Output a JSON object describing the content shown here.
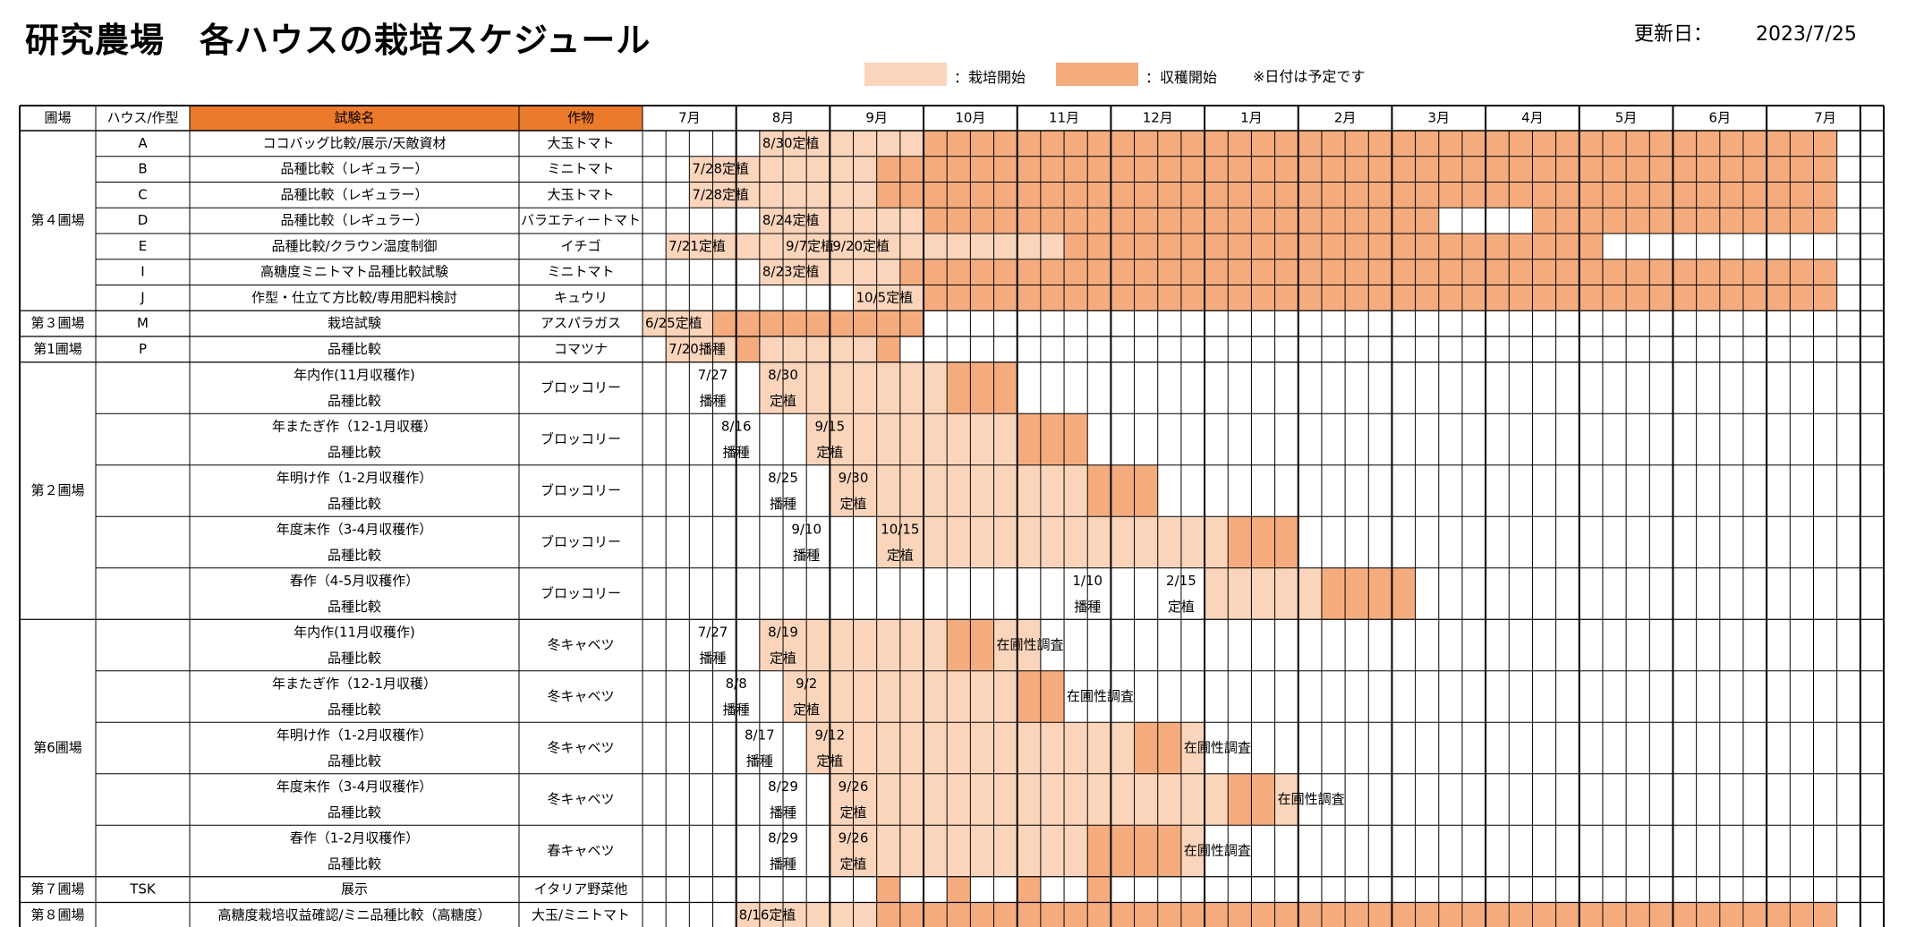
{
  "title": "研究農場　各ハウスの栽培スケジュール",
  "updated": {
    "label": "更新日：",
    "date": "2023/7/25"
  },
  "legend": [
    {
      "text": "：栽培開始",
      "color": "#fbd5bb"
    },
    {
      "text": "：収穫開始",
      "color": "#f4ac7f"
    }
  ],
  "note": "※日付は予定です",
  "colors": {
    "cultivation": "#fbd5bb",
    "harvest": "#f4ac7f",
    "header_accent": "#ec7a2b",
    "border": "#000000"
  },
  "headers": {
    "farm": "圃場",
    "house": "ハウス/作型",
    "trial": "試験名",
    "crop": "作物"
  },
  "months": [
    "7月",
    "8月",
    "9月",
    "10月",
    "11月",
    "12月",
    "1月",
    "2月",
    "3月",
    "4月",
    "5月",
    "6月",
    "7月"
  ],
  "groups": [
    {
      "name": "第４圃場",
      "rows": [
        0,
        6
      ]
    },
    {
      "name": "第３圃場",
      "rows": [
        7,
        7
      ]
    },
    {
      "name": "第1圃場",
      "rows": [
        8,
        8
      ]
    },
    {
      "name": "第２圃場",
      "rows": [
        9,
        13
      ]
    },
    {
      "name": "第6圃場",
      "rows": [
        14,
        18
      ]
    },
    {
      "name": "第７圃場",
      "rows": [
        19,
        19
      ]
    },
    {
      "name": "第８圃場",
      "rows": [
        20,
        20
      ]
    }
  ],
  "rows": [
    {
      "house": "A",
      "trial": [
        "ココバッグ比較/展示/天敵資材"
      ],
      "crop": "大玉トマト",
      "cult": [
        [
          5,
          17
        ]
      ],
      "harv": [
        [
          12,
          50
        ]
      ],
      "texts": [
        {
          "c": 5,
          "t": [
            "8/30定植"
          ]
        }
      ]
    },
    {
      "house": "B",
      "trial": [
        "品種比較（レギュラー）"
      ],
      "crop": "ミニトマト",
      "cult": [
        [
          2,
          9
        ]
      ],
      "harv": [
        [
          10,
          50
        ]
      ],
      "texts": [
        {
          "c": 2,
          "t": [
            "7/28定植"
          ]
        }
      ]
    },
    {
      "house": "C",
      "trial": [
        "品種比較（レギュラー）"
      ],
      "crop": "大玉トマト",
      "cult": [
        [
          2,
          9
        ]
      ],
      "harv": [
        [
          10,
          50
        ]
      ],
      "texts": [
        {
          "c": 2,
          "t": [
            "7/28定植"
          ]
        }
      ]
    },
    {
      "house": "D",
      "trial": [
        "品種比較（レギュラー）"
      ],
      "crop": "バラエティートマト",
      "cult": [
        [
          5,
          11
        ]
      ],
      "harv": [
        [
          12,
          33
        ],
        [
          38,
          50
        ]
      ],
      "texts": [
        {
          "c": 5,
          "t": [
            "8/24定植"
          ]
        }
      ]
    },
    {
      "house": "E",
      "trial": [
        "品種比較/クラウン温度制御"
      ],
      "crop": "イチゴ",
      "cult": [
        [
          1,
          17
        ]
      ],
      "harv": [
        [
          18,
          40
        ]
      ],
      "texts": [
        {
          "c": 1,
          "t": [
            "7/21定植"
          ]
        },
        {
          "c": 6,
          "t": [
            "9/7定植"
          ]
        },
        {
          "c": 8,
          "t": [
            "9/20定植"
          ]
        }
      ]
    },
    {
      "house": "I",
      "trial": [
        "高糖度ミニトマト品種比較試験"
      ],
      "crop": "ミニトマト",
      "cult": [
        [
          5,
          10
        ]
      ],
      "harv": [
        [
          11,
          50
        ]
      ],
      "texts": [
        {
          "c": 5,
          "t": [
            "8/23定植"
          ]
        }
      ]
    },
    {
      "house": "J",
      "trial": [
        "作型・仕立て方比較/専用肥料検討"
      ],
      "crop": "キュウリ",
      "cult": [
        [
          9,
          11
        ]
      ],
      "harv": [
        [
          12,
          50
        ]
      ],
      "texts": [
        {
          "c": 9,
          "t": [
            "10/5定植"
          ]
        }
      ]
    },
    {
      "house": "M",
      "trial": [
        "栽培試験"
      ],
      "crop": "アスパラガス",
      "cult": [
        [
          0,
          2
        ]
      ],
      "harv": [
        [
          3,
          11
        ]
      ],
      "texts": [
        {
          "c": 0,
          "t": [
            "6/25定植"
          ]
        }
      ]
    },
    {
      "house": "P",
      "trial": [
        "品種比較"
      ],
      "crop": "コマツナ",
      "cult": [
        [
          1,
          9
        ]
      ],
      "harv": [
        [
          4,
          4
        ],
        [
          10,
          10
        ]
      ],
      "texts": [
        {
          "c": 1,
          "t": [
            "7/20播種"
          ]
        }
      ]
    },
    {
      "house": "",
      "trial": [
        "年内作(11月収穫作)",
        "品種比較"
      ],
      "crop": "ブロッコリー",
      "cult": [
        [
          5,
          12
        ]
      ],
      "harv": [
        [
          13,
          15
        ]
      ],
      "texts": [
        {
          "c": 2,
          "t": [
            "7/27",
            "播種"
          ]
        },
        {
          "c": 5,
          "t": [
            "8/30",
            "定植"
          ]
        }
      ]
    },
    {
      "house": "",
      "trial": [
        "年またぎ作（12-1月収穫）",
        "品種比較"
      ],
      "crop": "ブロッコリー",
      "cult": [
        [
          7,
          15
        ]
      ],
      "harv": [
        [
          16,
          18
        ]
      ],
      "texts": [
        {
          "c": 3,
          "t": [
            "8/16",
            "播種"
          ]
        },
        {
          "c": 7,
          "t": [
            "9/15",
            "定植"
          ]
        }
      ]
    },
    {
      "house": "",
      "trial": [
        "年明け作（1-2月収穫作）",
        "品種比較"
      ],
      "crop": "ブロッコリー",
      "cult": [
        [
          8,
          18
        ]
      ],
      "harv": [
        [
          19,
          21
        ]
      ],
      "texts": [
        {
          "c": 5,
          "t": [
            "8/25",
            "播種"
          ]
        },
        {
          "c": 8,
          "t": [
            "9/30",
            "定植"
          ]
        }
      ]
    },
    {
      "house": "",
      "trial": [
        "年度末作（3-4月収穫作）",
        "品種比較"
      ],
      "crop": "ブロッコリー",
      "cult": [
        [
          10,
          24
        ]
      ],
      "harv": [
        [
          25,
          27
        ]
      ],
      "texts": [
        {
          "c": 6,
          "t": [
            "9/10",
            "播種"
          ]
        },
        {
          "c": 10,
          "t": [
            "10/15",
            "定植"
          ]
        }
      ]
    },
    {
      "house": "",
      "trial": [
        "春作（4-5月収穫作）",
        "品種比較"
      ],
      "crop": "ブロッコリー",
      "cult": [
        [
          24,
          32
        ]
      ],
      "harv": [
        [
          29,
          32
        ]
      ],
      "texts": [
        {
          "c": 18,
          "t": [
            "1/10",
            "播種"
          ]
        },
        {
          "c": 22,
          "t": [
            "2/15",
            "定植"
          ]
        }
      ]
    },
    {
      "house": "",
      "trial": [
        "年内作(11月収穫作)",
        "品種比較"
      ],
      "crop": "冬キャベツ",
      "cult": [
        [
          5,
          16
        ]
      ],
      "harv": [
        [
          13,
          14
        ]
      ],
      "texts": [
        {
          "c": 2,
          "t": [
            "7/27",
            "播種"
          ]
        },
        {
          "c": 5,
          "t": [
            "8/19",
            "定植"
          ]
        },
        {
          "c": 15,
          "t": [
            "在圃性調査"
          ]
        }
      ]
    },
    {
      "house": "",
      "trial": [
        "年またぎ作（12-1月収穫）",
        "品種比較"
      ],
      "crop": "冬キャベツ",
      "cult": [
        [
          6,
          17
        ]
      ],
      "harv": [
        [
          16,
          17
        ]
      ],
      "texts": [
        {
          "c": 3,
          "t": [
            "8/8",
            "播種"
          ]
        },
        {
          "c": 6,
          "t": [
            "9/2",
            "定植"
          ]
        },
        {
          "c": 18,
          "t": [
            "在圃性調査"
          ]
        }
      ]
    },
    {
      "house": "",
      "trial": [
        "年明け作（1-2月収穫作）",
        "品種比較"
      ],
      "crop": "冬キャベツ",
      "cult": [
        [
          7,
          23
        ]
      ],
      "harv": [
        [
          21,
          22
        ]
      ],
      "texts": [
        {
          "c": 4,
          "t": [
            "8/17",
            "播種"
          ]
        },
        {
          "c": 7,
          "t": [
            "9/12",
            "定植"
          ]
        },
        {
          "c": 23,
          "t": [
            "在圃性調査"
          ]
        }
      ]
    },
    {
      "house": "",
      "trial": [
        "年度末作（3-4月収穫作）",
        "品種比較"
      ],
      "crop": "冬キャベツ",
      "cult": [
        [
          8,
          27
        ]
      ],
      "harv": [
        [
          25,
          26
        ]
      ],
      "texts": [
        {
          "c": 5,
          "t": [
            "8/29",
            "播種"
          ]
        },
        {
          "c": 8,
          "t": [
            "9/26",
            "定植"
          ]
        },
        {
          "c": 27,
          "t": [
            "在圃性調査"
          ]
        }
      ]
    },
    {
      "house": "",
      "trial": [
        "春作（1-2月収穫作）",
        "品種比較"
      ],
      "crop": "春キャベツ",
      "cult": [
        [
          8,
          23
        ]
      ],
      "harv": [
        [
          19,
          22
        ]
      ],
      "texts": [
        {
          "c": 5,
          "t": [
            "8/29",
            "播種"
          ]
        },
        {
          "c": 8,
          "t": [
            "9/26",
            "定植"
          ]
        },
        {
          "c": 23,
          "t": [
            "在圃性調査"
          ]
        }
      ]
    },
    {
      "house": "TSK",
      "trial": [
        "展示"
      ],
      "crop": "イタリア野菜他",
      "cult": [],
      "harv": [
        [
          10,
          10
        ],
        [
          13,
          13
        ],
        [
          16,
          16
        ],
        [
          19,
          19
        ]
      ],
      "texts": []
    },
    {
      "house": "",
      "trial": [
        "高糖度栽培収益確認/ミニ品種比較（高糖度）"
      ],
      "crop": "大玉/ミニトマト",
      "cult": [
        [
          4,
          9
        ]
      ],
      "harv": [
        [
          10,
          50
        ]
      ],
      "texts": [
        {
          "c": 4,
          "t": [
            "8/16定植"
          ]
        }
      ]
    }
  ]
}
